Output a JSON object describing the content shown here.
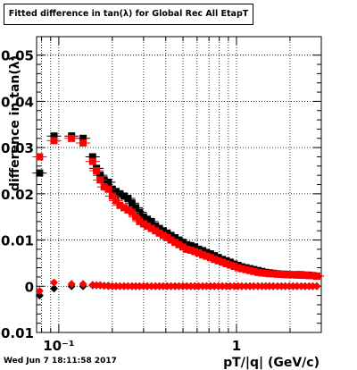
{
  "chart_data": {
    "type": "scatter",
    "title": "Fitted difference in tan(λ) for Global Rec All EtapT",
    "xlabel": "pT/|q| (GeV/c)",
    "ylabel": "difference in tan(λ)",
    "xscale": "log",
    "xlim": [
      0.075,
      3.0
    ],
    "ylim": [
      -0.01,
      0.054
    ],
    "xticks": [
      {
        "v": 0.1,
        "label": "10⁻¹"
      },
      {
        "v": 1,
        "label": "1"
      }
    ],
    "yticks": [
      -0.01,
      0,
      0.01,
      0.02,
      0.03,
      0.04,
      0.05
    ],
    "ytick_labels": [
      "-0.01",
      "0",
      "0.01",
      "0.02",
      "0.03",
      "0.04",
      "0.05"
    ],
    "grid": true,
    "series": [
      {
        "color": "#000000",
        "x": [
          0.078,
          0.094,
          0.118,
          0.137,
          0.155,
          0.163,
          0.171,
          0.18,
          0.19,
          0.2,
          0.21,
          0.221,
          0.233,
          0.245,
          0.258,
          0.271,
          0.285,
          0.3,
          0.315,
          0.332,
          0.35,
          0.368,
          0.387,
          0.407,
          0.428,
          0.451,
          0.474,
          0.499,
          0.525,
          0.553,
          0.582,
          0.612,
          0.645,
          0.678,
          0.714,
          0.751,
          0.79,
          0.832,
          0.875,
          0.921,
          0.97,
          1.02,
          1.07,
          1.13,
          1.19,
          1.25,
          1.32,
          1.39,
          1.46,
          1.53,
          1.61,
          1.7,
          1.79,
          1.88,
          1.98,
          2.08,
          2.19,
          2.31,
          2.43,
          2.56,
          2.69,
          2.83
        ],
        "y": [
          0.0245,
          0.0325,
          0.0325,
          0.032,
          0.028,
          0.0255,
          0.024,
          0.023,
          0.0225,
          0.021,
          0.0205,
          0.02,
          0.0195,
          0.019,
          0.018,
          0.017,
          0.016,
          0.015,
          0.0145,
          0.014,
          0.013,
          0.0125,
          0.012,
          0.0115,
          0.011,
          0.0105,
          0.01,
          0.0095,
          0.009,
          0.0088,
          0.0085,
          0.008,
          0.0077,
          0.0073,
          0.007,
          0.0066,
          0.0062,
          0.0058,
          0.0055,
          0.0052,
          0.0048,
          0.0045,
          0.0042,
          0.004,
          0.0038,
          0.0036,
          0.0034,
          0.0032,
          0.003,
          0.0029,
          0.0028,
          0.0027,
          0.0026,
          0.0026,
          0.0025,
          0.0025,
          0.0025,
          0.0025,
          0.0024,
          0.0024,
          0.0023,
          0.0022
        ]
      },
      {
        "color": "#ff0000",
        "x": [
          0.078,
          0.094,
          0.118,
          0.137,
          0.155,
          0.163,
          0.171,
          0.18,
          0.19,
          0.2,
          0.21,
          0.221,
          0.233,
          0.245,
          0.258,
          0.271,
          0.285,
          0.3,
          0.315,
          0.332,
          0.35,
          0.368,
          0.387,
          0.407,
          0.428,
          0.451,
          0.474,
          0.499,
          0.525,
          0.553,
          0.582,
          0.612,
          0.645,
          0.678,
          0.714,
          0.751,
          0.79,
          0.832,
          0.875,
          0.921,
          0.97,
          1.02,
          1.07,
          1.13,
          1.19,
          1.25,
          1.32,
          1.39,
          1.46,
          1.53,
          1.61,
          1.7,
          1.79,
          1.88,
          1.98,
          2.08,
          2.19,
          2.31,
          2.43,
          2.56,
          2.69,
          2.83
        ],
        "y": [
          0.028,
          0.0315,
          0.032,
          0.031,
          0.027,
          0.025,
          0.023,
          0.0215,
          0.021,
          0.0195,
          0.0185,
          0.0175,
          0.017,
          0.0165,
          0.016,
          0.015,
          0.014,
          0.0135,
          0.013,
          0.0125,
          0.012,
          0.0115,
          0.011,
          0.0105,
          0.01,
          0.0095,
          0.009,
          0.0085,
          0.008,
          0.0078,
          0.0075,
          0.0072,
          0.0068,
          0.0065,
          0.0062,
          0.0058,
          0.0055,
          0.0052,
          0.0049,
          0.0046,
          0.0043,
          0.004,
          0.0038,
          0.0036,
          0.0034,
          0.0032,
          0.003,
          0.0029,
          0.0028,
          0.0027,
          0.0027,
          0.0026,
          0.0026,
          0.0025,
          0.0025,
          0.0025,
          0.0024,
          0.0024,
          0.0024,
          0.0023,
          0.0023,
          0.0022
        ]
      },
      {
        "color": "#000000",
        "x": [
          0.078,
          0.094,
          0.118,
          0.137,
          0.155,
          0.163,
          0.171,
          0.18,
          0.19,
          0.2,
          0.21,
          0.221,
          0.233,
          0.245,
          0.258,
          0.271,
          0.285,
          0.3,
          0.315,
          0.332,
          0.35,
          0.368,
          0.387,
          0.407,
          0.428,
          0.451,
          0.474,
          0.499,
          0.525,
          0.553,
          0.582,
          0.612,
          0.645,
          0.678,
          0.714,
          0.751,
          0.79,
          0.832,
          0.875,
          0.921,
          0.97,
          1.02,
          1.07,
          1.13,
          1.19,
          1.25,
          1.32,
          1.39,
          1.46,
          1.53,
          1.61,
          1.7,
          1.79,
          1.88,
          1.98,
          2.08,
          2.19,
          2.31,
          2.43,
          2.56,
          2.69,
          2.83
        ],
        "y": [
          -0.002,
          -0.0005,
          0,
          0,
          0.0002,
          0.0002,
          0.0002,
          0.0001,
          0.0001,
          0,
          0,
          0,
          0,
          0,
          0,
          0,
          0,
          0,
          0,
          0,
          0,
          0,
          0,
          0,
          0,
          0,
          0,
          0,
          0,
          0,
          0,
          0,
          0,
          0,
          0,
          0,
          0,
          0,
          0,
          0,
          0,
          0,
          0,
          0,
          0,
          0,
          0,
          0,
          0,
          0,
          0,
          0,
          0,
          0,
          0,
          0,
          0,
          0,
          0,
          0,
          0,
          0
        ]
      },
      {
        "color": "#ff0000",
        "x": [
          0.078,
          0.094,
          0.118,
          0.137,
          0.155,
          0.163,
          0.171,
          0.18,
          0.19,
          0.2,
          0.21,
          0.221,
          0.233,
          0.245,
          0.258,
          0.271,
          0.285,
          0.3,
          0.315,
          0.332,
          0.35,
          0.368,
          0.387,
          0.407,
          0.428,
          0.451,
          0.474,
          0.499,
          0.525,
          0.553,
          0.582,
          0.612,
          0.645,
          0.678,
          0.714,
          0.751,
          0.79,
          0.832,
          0.875,
          0.921,
          0.97,
          1.02,
          1.07,
          1.13,
          1.19,
          1.25,
          1.32,
          1.39,
          1.46,
          1.53,
          1.61,
          1.7,
          1.79,
          1.88,
          1.98,
          2.08,
          2.19,
          2.31,
          2.43,
          2.56,
          2.69,
          2.83
        ],
        "y": [
          -0.001,
          0.0008,
          0.0005,
          0.0005,
          0.0003,
          0.0002,
          0.0002,
          0.0001,
          0,
          0,
          0,
          0,
          0,
          0,
          0,
          0,
          0,
          0,
          0,
          0,
          0,
          0,
          0,
          0,
          0,
          0,
          0,
          0,
          0,
          0,
          0,
          0,
          0,
          0,
          0,
          0,
          0,
          0,
          0,
          0,
          0,
          0,
          0,
          0,
          0,
          0,
          0,
          0,
          0,
          0,
          0,
          0,
          0,
          0,
          0,
          0,
          0,
          0,
          0,
          0,
          0,
          0
        ]
      }
    ]
  },
  "footer": {
    "timestamp": "Wed Jun  7 18:11:58 2017"
  }
}
